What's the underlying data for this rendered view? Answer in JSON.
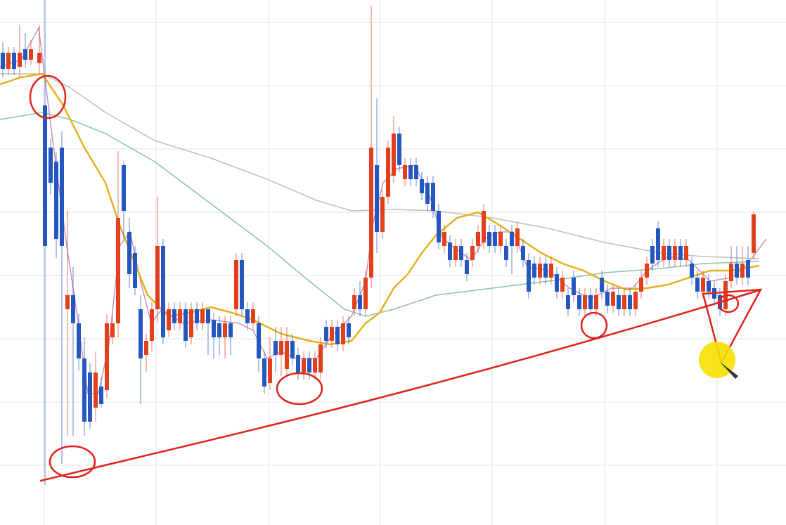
{
  "chart_data": {
    "type": "candlestick",
    "xlim": [
      0,
      1118
    ],
    "ylim": [
      0,
      747
    ],
    "xticks": [
      62,
      222,
      382,
      540,
      700,
      860,
      1020
    ],
    "yticks": [
      715,
      625,
      535,
      445,
      355,
      265,
      175,
      85
    ],
    "grid": true,
    "up_color": "#e2401c",
    "down_color": "#2458c0",
    "x": [
      4,
      12,
      20,
      28,
      36,
      44,
      56,
      64,
      72,
      80,
      88,
      96,
      104,
      112,
      120,
      128,
      136,
      144,
      152,
      160,
      168,
      176,
      184,
      192,
      200,
      208,
      216,
      224,
      232,
      240,
      248,
      256,
      264,
      272,
      280,
      288,
      296,
      304,
      312,
      320,
      328,
      336,
      344,
      352,
      360,
      368,
      376,
      384,
      392,
      400,
      408,
      416,
      424,
      432,
      440,
      448,
      456,
      464,
      472,
      480,
      488,
      496,
      504,
      512,
      520,
      528,
      536,
      544,
      552,
      560,
      568,
      576,
      584,
      592,
      600,
      608,
      616,
      624,
      632,
      640,
      648,
      656,
      664,
      672,
      680,
      688,
      696,
      704,
      712,
      720,
      728,
      736,
      744,
      752,
      760,
      768,
      776,
      784,
      792,
      800,
      808,
      816,
      824,
      832,
      840,
      848,
      856,
      864,
      872,
      880,
      888,
      896,
      904,
      912,
      920,
      928,
      936,
      944,
      952,
      960,
      968,
      976,
      984,
      992,
      1000,
      1008,
      1016,
      1024,
      1032,
      1040,
      1048,
      1056,
      1064,
      1072
    ],
    "open": [
      672,
      649,
      672,
      652,
      677,
      662,
      657,
      597,
      537,
      517,
      537,
      307,
      327,
      287,
      237,
      217,
      167,
      197,
      192,
      267,
      287,
      512,
      417,
      387,
      307,
      242,
      262,
      307,
      397,
      277,
      307,
      287,
      307,
      267,
      307,
      287,
      307,
      292,
      287,
      267,
      287,
      307,
      377,
      307,
      287,
      287,
      237,
      202,
      262,
      242,
      222,
      262,
      242,
      217,
      237,
      217,
      217,
      282,
      262,
      282,
      257,
      287,
      307,
      327,
      307,
      352,
      512,
      417,
      467,
      497,
      557,
      492,
      512,
      512,
      492,
      487,
      487,
      447,
      397,
      402,
      377,
      397,
      377,
      377,
      397,
      402,
      417,
      417,
      397,
      397,
      417,
      397,
      397,
      377,
      372,
      352,
      372,
      352,
      357,
      332,
      327,
      352,
      327,
      307,
      327,
      307,
      352,
      332,
      312,
      327,
      307,
      327,
      307,
      332,
      352,
      397,
      422,
      377,
      397,
      377,
      397,
      377,
      372,
      352,
      332,
      347,
      337,
      327,
      307,
      347,
      372,
      352,
      377,
      387
    ],
    "high": [
      687,
      680,
      680,
      712,
      700,
      690,
      712,
      747,
      550,
      530,
      560,
      447,
      367,
      300,
      267,
      230,
      247,
      210,
      300,
      300,
      532,
      517,
      437,
      397,
      327,
      272,
      317,
      467,
      407,
      317,
      317,
      317,
      317,
      317,
      317,
      317,
      307,
      302,
      297,
      297,
      297,
      387,
      387,
      317,
      317,
      297,
      247,
      267,
      282,
      282,
      282,
      272,
      252,
      247,
      247,
      247,
      267,
      292,
      292,
      292,
      297,
      297,
      337,
      347,
      362,
      739,
      607,
      477,
      547,
      582,
      567,
      522,
      522,
      522,
      502,
      497,
      497,
      457,
      427,
      412,
      407,
      407,
      387,
      407,
      427,
      457,
      427,
      427,
      427,
      407,
      427,
      432,
      407,
      387,
      382,
      382,
      382,
      382,
      367,
      362,
      337,
      362,
      337,
      337,
      337,
      337,
      362,
      342,
      342,
      337,
      337,
      337,
      342,
      362,
      382,
      407,
      432,
      407,
      407,
      407,
      407,
      407,
      382,
      362,
      362,
      357,
      347,
      337,
      357,
      397,
      397,
      397,
      397,
      447
    ],
    "low": [
      637,
      640,
      640,
      637,
      650,
      655,
      642,
      57,
      470,
      380,
      87,
      127,
      127,
      220,
      127,
      137,
      147,
      167,
      180,
      257,
      267,
      407,
      337,
      327,
      172,
      217,
      247,
      287,
      257,
      267,
      277,
      277,
      252,
      257,
      277,
      277,
      242,
      237,
      242,
      237,
      242,
      297,
      297,
      277,
      277,
      217,
      187,
      192,
      217,
      212,
      212,
      227,
      207,
      207,
      207,
      207,
      207,
      252,
      252,
      247,
      247,
      257,
      297,
      297,
      297,
      337,
      387,
      407,
      457,
      487,
      502,
      482,
      482,
      482,
      462,
      447,
      437,
      392,
      387,
      367,
      367,
      367,
      347,
      367,
      387,
      392,
      387,
      387,
      387,
      367,
      357,
      387,
      367,
      322,
      342,
      342,
      342,
      342,
      322,
      322,
      297,
      317,
      297,
      297,
      297,
      297,
      322,
      302,
      302,
      297,
      297,
      297,
      297,
      322,
      342,
      362,
      367,
      367,
      367,
      367,
      367,
      367,
      342,
      322,
      322,
      322,
      312,
      297,
      297,
      337,
      342,
      342,
      342,
      377
    ],
    "close": [
      649,
      672,
      649,
      672,
      662,
      677,
      672,
      397,
      487,
      407,
      397,
      327,
      287,
      237,
      147,
      147,
      217,
      172,
      287,
      287,
      437,
      447,
      357,
      337,
      237,
      262,
      307,
      397,
      267,
      307,
      287,
      307,
      262,
      307,
      287,
      307,
      287,
      267,
      267,
      287,
      267,
      377,
      307,
      287,
      307,
      237,
      197,
      237,
      242,
      262,
      262,
      237,
      217,
      237,
      217,
      237,
      257,
      262,
      282,
      257,
      287,
      267,
      327,
      307,
      352,
      537,
      417,
      467,
      537,
      557,
      512,
      512,
      492,
      492,
      472,
      457,
      447,
      402,
      417,
      377,
      397,
      377,
      357,
      397,
      417,
      447,
      397,
      397,
      417,
      377,
      397,
      422,
      377,
      332,
      352,
      372,
      352,
      372,
      332,
      352,
      307,
      327,
      307,
      327,
      307,
      327,
      332,
      312,
      332,
      307,
      327,
      307,
      332,
      352,
      372,
      372,
      377,
      397,
      377,
      397,
      377,
      397,
      352,
      332,
      352,
      332,
      322,
      307,
      347,
      372,
      352,
      372,
      352,
      442
    ],
    "overlays": [
      {
        "color": "#c990c2",
        "x": [
          0,
          30,
          55,
          75,
          95,
          110,
          125,
          140,
          155,
          170,
          185,
          200,
          215,
          230,
          260,
          300,
          340,
          360,
          380,
          400,
          420,
          450,
          470,
          500,
          520,
          530,
          545,
          565,
          590,
          610,
          630,
          650,
          670,
          690,
          710,
          730,
          750,
          780,
          810,
          840,
          870,
          900,
          920,
          950,
          980,
          1010,
          1040,
          1060,
          1090
        ],
        "values": [
          652,
          662,
          707,
          547,
          397,
          297,
          187,
          187,
          257,
          397,
          417,
          347,
          287,
          307,
          287,
          292,
          287,
          277,
          237,
          247,
          237,
          237,
          267,
          297,
          347,
          427,
          487,
          507,
          512,
          472,
          407,
          392,
          377,
          407,
          417,
          417,
          367,
          362,
          337,
          322,
          337,
          337,
          362,
          382,
          377,
          347,
          352,
          367,
          407
        ]
      },
      {
        "color": "#b7c2c2",
        "x": [
          0,
          60,
          100,
          150,
          220,
          300,
          380,
          450,
          500,
          560,
          620,
          700,
          780,
          860,
          940,
          1000,
          1080
        ],
        "values": [
          642,
          642,
          622,
          587,
          547,
          522,
          492,
          462,
          447,
          449,
          447,
          437,
          422,
          402,
          387,
          382,
          379
        ]
      },
      {
        "color": "#8cc2a6",
        "x": [
          0,
          60,
          100,
          150,
          220,
          300,
          380,
          440,
          490,
          520,
          560,
          620,
          700,
          780,
          860,
          940,
          1000,
          1080
        ],
        "values": [
          577,
          587,
          577,
          557,
          517,
          457,
          397,
          347,
          307,
          297,
          307,
          327,
          337,
          347,
          359,
          365,
          372,
          375
        ]
      },
      {
        "color": "#e8b020",
        "x": [
          0,
          30,
          60,
          90,
          120,
          150,
          170,
          190,
          210,
          240,
          270,
          300,
          330,
          360,
          400,
          440,
          470,
          500,
          520,
          540,
          560,
          580,
          600,
          620,
          650,
          680,
          710,
          740,
          770,
          800,
          830,
          860,
          890,
          920,
          950,
          980,
          1010,
          1040,
          1080
        ],
        "values": [
          627,
          637,
          642,
          597,
          537,
          487,
          427,
          377,
          327,
          297,
          302,
          310,
          302,
          292,
          272,
          262,
          257,
          262,
          287,
          302,
          337,
          357,
          387,
          412,
          437,
          445,
          427,
          407,
          387,
          372,
          362,
          347,
          335,
          337,
          342,
          352,
          362,
          362,
          369
        ]
      }
    ]
  }
}
